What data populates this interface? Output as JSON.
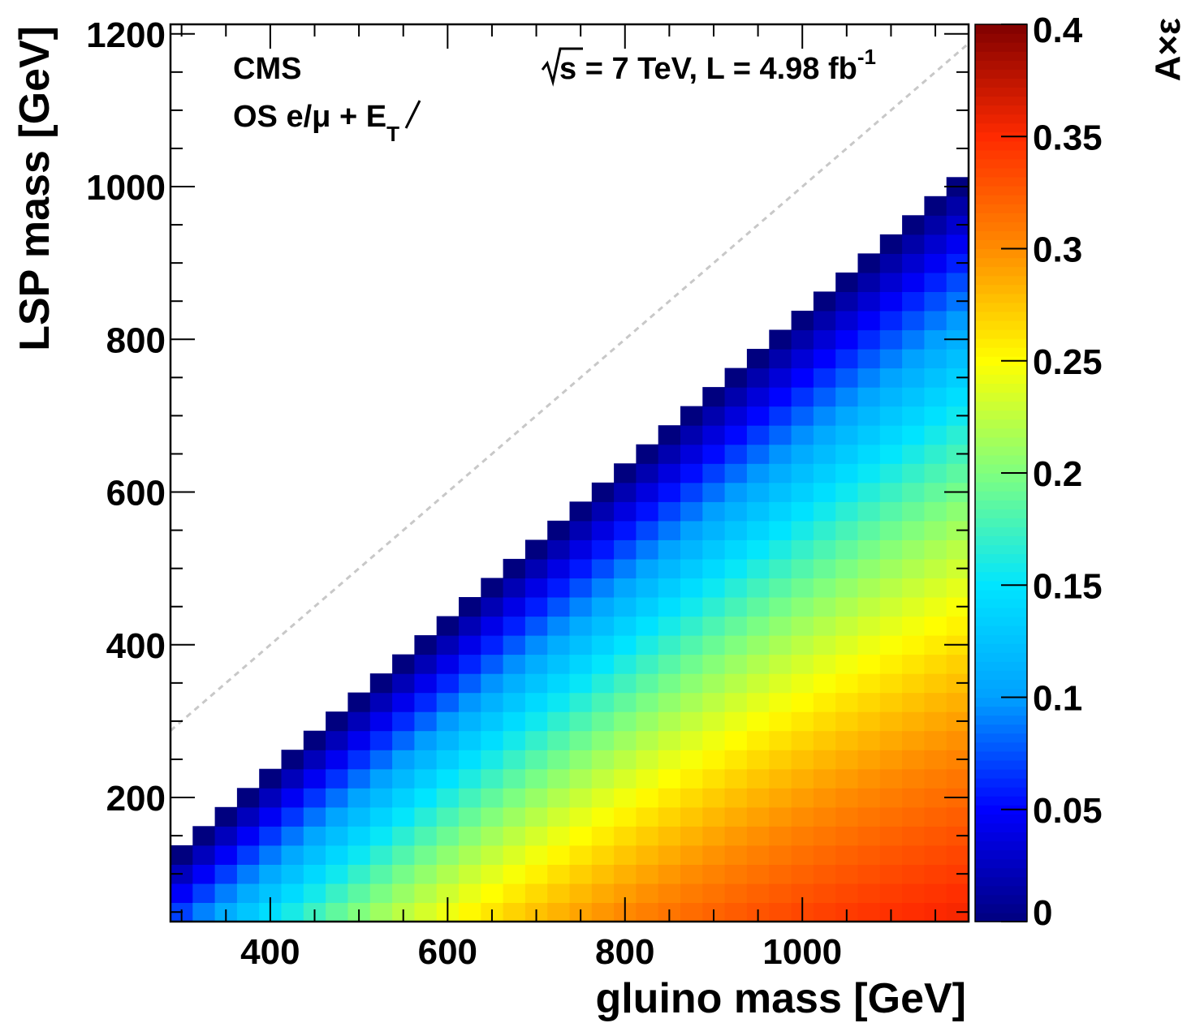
{
  "chart_data": {
    "type": "heatmap",
    "title": "",
    "experiment_label": "CMS",
    "channel_label": "OS e/μ + E",
    "channel_label_subscript": "T",
    "energy_label_root": "s",
    "energy_label": " = 7 TeV, L = 4.98 fb",
    "energy_label_superscript": "-1",
    "xlabel": "gluino mass [GeV]",
    "ylabel": "LSP mass [GeV]",
    "zlabel": "A×ε",
    "xlim": [
      287.5,
      1187.5
    ],
    "ylim": [
      37.5,
      1212.5
    ],
    "zlim": [
      0,
      0.4
    ],
    "x_ticks": [
      400,
      600,
      800,
      1000
    ],
    "y_ticks": [
      200,
      400,
      600,
      800,
      1000,
      1200
    ],
    "z_ticks": [
      "0",
      "0.05",
      "0.1",
      "0.15",
      "0.2",
      "0.25",
      "0.3",
      "0.35",
      "0.4"
    ],
    "bin_width_gev": 25,
    "x_centers_first": 300,
    "x_centers_last": 1175,
    "y_centers_first": 50,
    "diagonal_boundary": "LSP mass < gluino mass - 175 GeV",
    "diagonal_reference_line": "LSP mass = gluino mass",
    "grid": false,
    "colormap": [
      "#00007f",
      "#0000ff",
      "#00a0ff",
      "#00e5ff",
      "#7fff7f",
      "#ffff00",
      "#ff8c00",
      "#ff2a00",
      "#800000"
    ],
    "value_model": "A x eps approx 0.39 * (1 - exp(-(gluino - LSP - 175) / 370)) * (1 - 0.4 * LSP / 1000), binned 25 x 25 GeV"
  }
}
